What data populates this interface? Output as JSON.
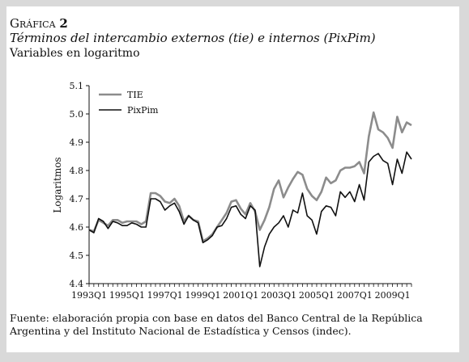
{
  "figure": {
    "label_prefix": "Gráfica",
    "label_number": "2",
    "title": "Términos del intercambio externos (tie) e internos (PixPim)",
    "subtitle": "Variables en logaritmo",
    "source": "Fuente: elaboración propia con base en datos del Banco Central de la República Argentina y del Instituto Nacional de Estadística y Censos (indec)."
  },
  "colors": {
    "TIE": "#8c8c8c",
    "PixPim": "#111111"
  },
  "chart_data": {
    "type": "line",
    "title": "Términos del intercambio externos (tie) e internos (PixPim)",
    "ylabel": "Logaritmos",
    "xlabel": "",
    "ylim": [
      4.4,
      5.1
    ],
    "yticks": [
      "4.4",
      "4.5",
      "4.6",
      "4.7",
      "4.8",
      "4.9",
      "5.0",
      "5.1"
    ],
    "xticks": [
      "1993Q1",
      "1995Q1",
      "1997Q1",
      "1999Q1",
      "2001Q1",
      "2003Q1",
      "2005Q1",
      "2007Q1",
      "2009Q1"
    ],
    "legend_position": "top-left",
    "x": [
      "1993Q1",
      "1993Q2",
      "1993Q3",
      "1993Q4",
      "1994Q1",
      "1994Q2",
      "1994Q3",
      "1994Q4",
      "1995Q1",
      "1995Q2",
      "1995Q3",
      "1995Q4",
      "1996Q1",
      "1996Q2",
      "1996Q3",
      "1996Q4",
      "1997Q1",
      "1997Q2",
      "1997Q3",
      "1997Q4",
      "1998Q1",
      "1998Q2",
      "1998Q3",
      "1998Q4",
      "1999Q1",
      "1999Q2",
      "1999Q3",
      "1999Q4",
      "2000Q1",
      "2000Q2",
      "2000Q3",
      "2000Q4",
      "2001Q1",
      "2001Q2",
      "2001Q3",
      "2001Q4",
      "2002Q1",
      "2002Q2",
      "2002Q3",
      "2002Q4",
      "2003Q1",
      "2003Q2",
      "2003Q3",
      "2003Q4",
      "2004Q1",
      "2004Q2",
      "2004Q3",
      "2004Q4",
      "2005Q1",
      "2005Q2",
      "2005Q3",
      "2005Q4",
      "2006Q1",
      "2006Q2",
      "2006Q3",
      "2006Q4",
      "2007Q1",
      "2007Q2",
      "2007Q3",
      "2007Q4",
      "2008Q1",
      "2008Q2",
      "2008Q3",
      "2008Q4",
      "2009Q1",
      "2009Q2",
      "2009Q3",
      "2009Q4",
      "2010Q1"
    ],
    "series": [
      {
        "name": "TIE",
        "values": [
          4.59,
          4.585,
          4.625,
          4.615,
          4.605,
          4.625,
          4.625,
          4.615,
          4.62,
          4.62,
          4.62,
          4.61,
          4.62,
          4.72,
          4.72,
          4.71,
          4.69,
          4.685,
          4.7,
          4.675,
          4.62,
          4.64,
          4.625,
          4.62,
          4.55,
          4.56,
          4.575,
          4.6,
          4.625,
          4.65,
          4.69,
          4.695,
          4.665,
          4.645,
          4.685,
          4.655,
          4.59,
          4.625,
          4.67,
          4.735,
          4.765,
          4.705,
          4.74,
          4.77,
          4.795,
          4.785,
          4.735,
          4.71,
          4.695,
          4.725,
          4.775,
          4.755,
          4.765,
          4.8,
          4.81,
          4.81,
          4.815,
          4.83,
          4.79,
          4.92,
          5.005,
          4.945,
          4.935,
          4.915,
          4.88,
          4.99,
          4.935,
          4.97,
          4.96
        ]
      },
      {
        "name": "PixPim",
        "values": [
          4.59,
          4.58,
          4.63,
          4.62,
          4.595,
          4.62,
          4.615,
          4.605,
          4.605,
          4.615,
          4.61,
          4.6,
          4.6,
          4.7,
          4.7,
          4.69,
          4.66,
          4.675,
          4.685,
          4.655,
          4.61,
          4.64,
          4.625,
          4.615,
          4.545,
          4.555,
          4.57,
          4.6,
          4.605,
          4.63,
          4.67,
          4.675,
          4.645,
          4.63,
          4.675,
          4.66,
          4.46,
          4.53,
          4.575,
          4.6,
          4.615,
          4.64,
          4.6,
          4.66,
          4.65,
          4.72,
          4.64,
          4.625,
          4.575,
          4.655,
          4.675,
          4.67,
          4.64,
          4.725,
          4.705,
          4.725,
          4.69,
          4.75,
          4.695,
          4.83,
          4.85,
          4.86,
          4.835,
          4.825,
          4.75,
          4.84,
          4.79,
          4.865,
          4.84
        ]
      }
    ]
  }
}
